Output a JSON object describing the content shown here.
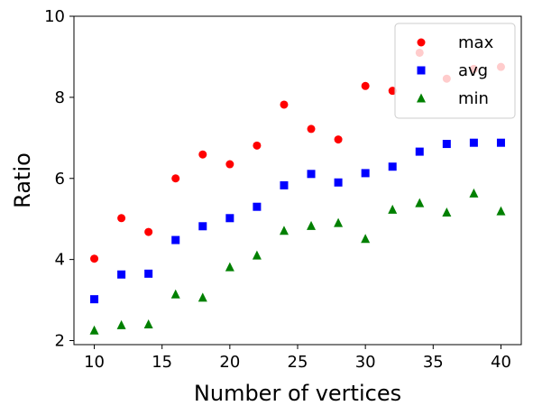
{
  "chart_data": {
    "type": "scatter",
    "title": "",
    "xlabel": "Number of vertices",
    "ylabel": "Ratio",
    "xlim": [
      8.5,
      41.5
    ],
    "ylim": [
      1.9,
      10
    ],
    "xticks": [
      10,
      15,
      20,
      25,
      30,
      35,
      40
    ],
    "yticks": [
      2,
      4,
      6,
      8,
      10
    ],
    "grid": false,
    "legend_position": "top-right",
    "x": [
      10,
      12,
      14,
      16,
      18,
      20,
      22,
      24,
      26,
      28,
      30,
      32,
      34,
      36,
      38,
      40
    ],
    "series": [
      {
        "name": "max",
        "marker": "circle",
        "color": "#ff0000",
        "values": [
          4.02,
          5.02,
          4.68,
          6.0,
          6.59,
          6.35,
          6.81,
          7.82,
          7.22,
          6.96,
          8.28,
          8.16,
          9.1,
          8.46,
          8.7,
          8.75
        ]
      },
      {
        "name": "avg",
        "marker": "square",
        "color": "#0000ff",
        "values": [
          3.02,
          3.63,
          3.65,
          4.48,
          4.82,
          5.02,
          5.3,
          5.83,
          6.11,
          5.9,
          6.13,
          6.29,
          6.66,
          6.85,
          6.88,
          6.88
        ]
      },
      {
        "name": "min",
        "marker": "triangle",
        "color": "#008000",
        "values": [
          2.25,
          2.38,
          2.4,
          3.14,
          3.06,
          3.81,
          4.1,
          4.71,
          4.83,
          4.9,
          4.51,
          5.23,
          5.39,
          5.16,
          5.63,
          5.19
        ]
      }
    ]
  }
}
